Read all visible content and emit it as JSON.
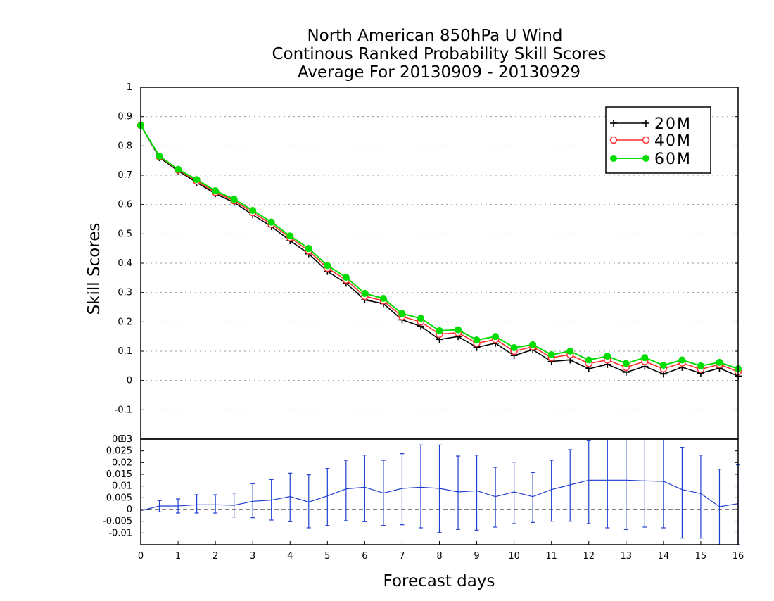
{
  "colors": {
    "series_20M": "#000000",
    "series_40M": "#ff3030",
    "series_60M": "#00dd00",
    "difference": "#1f3fd0",
    "grid": "#999999"
  },
  "chart_data": [
    {
      "type": "line",
      "title": [
        "North American 850hPa U Wind",
        "Continous Ranked Probability Skill Scores",
        "Average For 20130909 - 20130929"
      ],
      "xlabel": "",
      "ylabel": "Skill Scores",
      "xlim": [
        0,
        16
      ],
      "ylim": [
        -0.2,
        1
      ],
      "yticks": [
        -0.1,
        0,
        0.1,
        0.2,
        0.3,
        0.4,
        0.5,
        0.6,
        0.7,
        0.8,
        0.9,
        1
      ],
      "ytick_labels": [
        "-0.1",
        "0",
        "0.1",
        "0.2",
        "0.3",
        "0.4",
        "0.5",
        "0.6",
        "0.7",
        "0.8",
        "0.9",
        "1"
      ],
      "grid": true,
      "legend_position": "top-right",
      "x": [
        0,
        0.5,
        1,
        1.5,
        2,
        2.5,
        3,
        3.5,
        4,
        4.5,
        5,
        5.5,
        6,
        6.5,
        7,
        7.5,
        8,
        8.5,
        9,
        9.5,
        10,
        10.5,
        11,
        11.5,
        12,
        12.5,
        13,
        13.5,
        14,
        14.5,
        15,
        15.5,
        16
      ],
      "series": [
        {
          "name": "20M",
          "marker": "plus",
          "values": [
            0.87,
            0.76,
            0.715,
            0.675,
            0.637,
            0.607,
            0.565,
            0.525,
            0.477,
            0.432,
            0.372,
            0.332,
            0.275,
            0.262,
            0.207,
            0.185,
            0.14,
            0.15,
            0.113,
            0.127,
            0.085,
            0.105,
            0.065,
            0.07,
            0.04,
            0.055,
            0.028,
            0.048,
            0.022,
            0.045,
            0.025,
            0.042,
            0.015
          ]
        },
        {
          "name": "40M",
          "marker": "circle-open",
          "values": [
            0.87,
            0.763,
            0.718,
            0.68,
            0.642,
            0.613,
            0.573,
            0.533,
            0.487,
            0.442,
            0.383,
            0.343,
            0.287,
            0.272,
            0.218,
            0.2,
            0.158,
            0.163,
            0.127,
            0.14,
            0.1,
            0.115,
            0.078,
            0.088,
            0.058,
            0.07,
            0.045,
            0.065,
            0.04,
            0.06,
            0.038,
            0.055,
            0.03
          ]
        },
        {
          "name": "60M",
          "marker": "circle-filled",
          "values": [
            0.87,
            0.765,
            0.72,
            0.685,
            0.647,
            0.618,
            0.58,
            0.54,
            0.493,
            0.45,
            0.392,
            0.352,
            0.297,
            0.28,
            0.228,
            0.212,
            0.17,
            0.173,
            0.138,
            0.15,
            0.112,
            0.122,
            0.088,
            0.1,
            0.07,
            0.083,
            0.058,
            0.078,
            0.052,
            0.07,
            0.05,
            0.062,
            0.04
          ]
        }
      ]
    },
    {
      "type": "line",
      "xlabel": "Forecast days",
      "ylabel": "",
      "xlim": [
        0,
        16
      ],
      "ylim": [
        -0.015,
        0.03
      ],
      "xticks": [
        0,
        1,
        2,
        3,
        4,
        5,
        6,
        7,
        8,
        9,
        10,
        11,
        12,
        13,
        14,
        15,
        16
      ],
      "xtick_labels": [
        "0",
        "1",
        "2",
        "3",
        "4",
        "5",
        "6",
        "7",
        "8",
        "9",
        "10",
        "11",
        "12",
        "13",
        "14",
        "15",
        "16"
      ],
      "yticks": [
        -0.01,
        -0.005,
        0,
        0.005,
        0.01,
        0.015,
        0.02,
        0.025,
        0.03
      ],
      "ytick_labels": [
        "-0.01",
        "-0.005",
        "0",
        "0.005",
        "0.01",
        "0.015",
        "0.02",
        "0.025",
        "0.03"
      ],
      "top_label_overlap": "0.3",
      "zero_line": true,
      "x": [
        0,
        0.5,
        1,
        1.5,
        2,
        2.5,
        3,
        3.5,
        4,
        4.5,
        5,
        5.5,
        6,
        6.5,
        7,
        7.5,
        8,
        8.5,
        9,
        9.5,
        10,
        10.5,
        11,
        11.5,
        12,
        12.5,
        13,
        13.5,
        14,
        14.5,
        15,
        15.5,
        16
      ],
      "mean": [
        -0.0005,
        0.0015,
        0.0015,
        0.002,
        0.002,
        0.0018,
        0.0035,
        0.004,
        0.0055,
        0.0032,
        0.0058,
        0.0088,
        0.0095,
        0.007,
        0.009,
        0.0095,
        0.009,
        0.0075,
        0.008,
        0.0055,
        0.0075,
        0.0055,
        0.0085,
        0.0105,
        0.0125,
        0.0125,
        0.0125,
        0.0122,
        0.012,
        0.0085,
        0.0068,
        0.0012,
        0.0025
      ],
      "error_low": [
        null,
        -0.001,
        -0.0015,
        -0.0015,
        -0.0015,
        -0.0032,
        -0.0035,
        -0.0045,
        -0.0052,
        -0.0078,
        -0.0068,
        -0.0048,
        -0.0052,
        -0.0068,
        -0.0065,
        -0.0078,
        -0.0098,
        -0.0085,
        -0.0088,
        -0.0075,
        -0.006,
        -0.0055,
        -0.005,
        -0.005,
        -0.006,
        -0.0078,
        -0.0085,
        -0.0075,
        -0.0078,
        -0.0122,
        -0.0122,
        -0.015,
        -0.015
      ],
      "error_high": [
        null,
        0.0038,
        0.0045,
        0.0063,
        0.0063,
        0.007,
        0.011,
        0.0128,
        0.0155,
        0.0148,
        0.0175,
        0.021,
        0.0232,
        0.021,
        0.0238,
        0.0275,
        0.0275,
        0.0228,
        0.0232,
        0.018,
        0.0202,
        0.0158,
        0.021,
        0.0255,
        0.0295,
        0.03,
        0.03,
        0.03,
        0.03,
        0.0265,
        0.0232,
        0.0172,
        0.019
      ]
    }
  ]
}
